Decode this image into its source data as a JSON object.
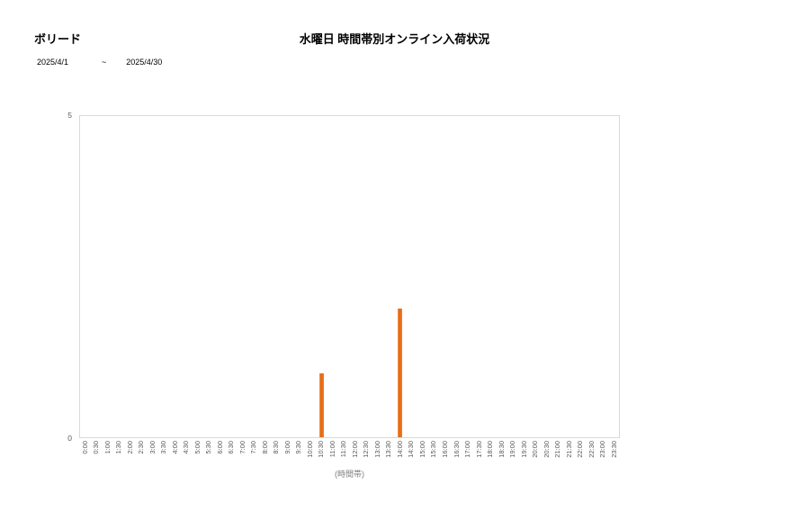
{
  "header": {
    "brand": "ボリード",
    "title": "水曜日 時間帯別オンライン入荷状況",
    "date_start": "2025/4/1",
    "date_separator": "~",
    "date_end": "2025/4/30"
  },
  "chart_data": {
    "type": "bar",
    "title": "水曜日 時間帯別オンライン入荷状況",
    "xlabel": "(時間帯)",
    "ylabel": "",
    "ylim": [
      0,
      5
    ],
    "yticks": [
      5,
      0
    ],
    "grid": false,
    "legend": "none",
    "bar_color": "#ED7D31",
    "axis_line_color": "#D9D9D9",
    "tick_label_color": "#595959",
    "categories": [
      "0:00",
      "0:30",
      "1:00",
      "1:30",
      "2:00",
      "2:30",
      "3:00",
      "3:30",
      "4:00",
      "4:30",
      "5:00",
      "5:30",
      "6:00",
      "6:30",
      "7:00",
      "7:30",
      "8:00",
      "8:30",
      "9:00",
      "9:30",
      "10:00",
      "10:30",
      "11:00",
      "11:30",
      "12:00",
      "12:30",
      "13:00",
      "13:30",
      "14:00",
      "14:30",
      "15:00",
      "15:30",
      "16:00",
      "16:30",
      "17:00",
      "17:30",
      "18:00",
      "18:30",
      "19:00",
      "19:30",
      "20:00",
      "20:30",
      "21:00",
      "21:30",
      "22:00",
      "22:30",
      "23:00",
      "23:30"
    ],
    "values": [
      0,
      0,
      0,
      0,
      0,
      0,
      0,
      0,
      0,
      0,
      0,
      0,
      0,
      0,
      0,
      0,
      0,
      0,
      0,
      0,
      0,
      1,
      0,
      0,
      0,
      0,
      0,
      0,
      2,
      0,
      0,
      0,
      0,
      0,
      0,
      0,
      0,
      0,
      0,
      0,
      0,
      0,
      0,
      0,
      0,
      0,
      0,
      0
    ]
  }
}
